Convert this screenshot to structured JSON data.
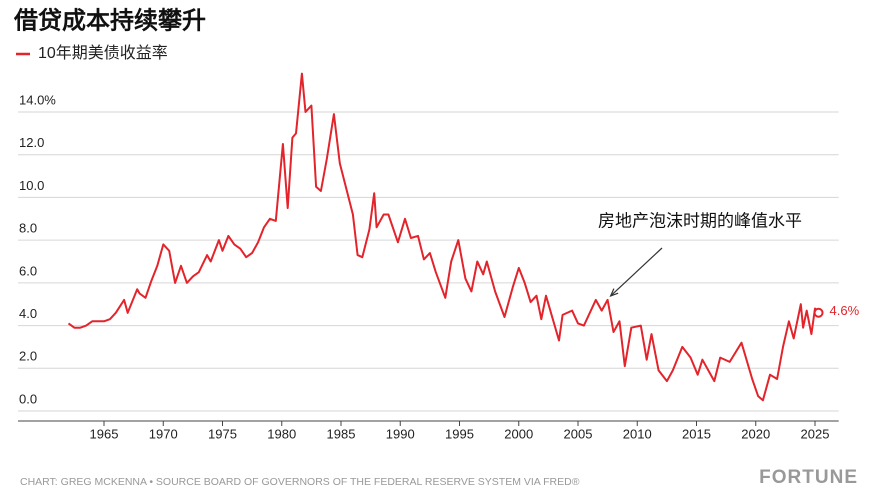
{
  "chart_data": {
    "type": "line",
    "title": "借贷成本持续攀升",
    "source": "CHART: GREG MCKENNA • SOURCE BOARD OF GOVERNORS OF THE FEDERAL RESERVE SYSTEM VIA FRED®",
    "brand": "FORTUNE",
    "annotation": {
      "text": "房地产泡沫时期的峰值水平",
      "x": 2007.5,
      "value": 5.2
    },
    "end_label": "4.6%",
    "xlim": [
      1960,
      2027
    ],
    "xticks": [
      1965,
      1970,
      1975,
      1980,
      1985,
      1990,
      1995,
      2000,
      2005,
      2010,
      2015,
      2020,
      2025
    ],
    "ylim": [
      0,
      14
    ],
    "yticks": [
      {
        "value": 0,
        "label": "0.0"
      },
      {
        "value": 2,
        "label": "2.0"
      },
      {
        "value": 4,
        "label": "4.0"
      },
      {
        "value": 6,
        "label": "6.0"
      },
      {
        "value": 8,
        "label": "8.0"
      },
      {
        "value": 10,
        "label": "10.0"
      },
      {
        "value": 12,
        "label": "12.0"
      },
      {
        "value": 14,
        "label": "14.0%"
      }
    ],
    "grid": true,
    "x": [
      1962.0,
      1962.5,
      1963.0,
      1963.5,
      1964.0,
      1965.0,
      1965.5,
      1966.0,
      1966.7,
      1967.0,
      1967.8,
      1968.0,
      1968.5,
      1969.0,
      1969.5,
      1970.0,
      1970.5,
      1971.0,
      1971.5,
      1972.0,
      1972.5,
      1973.0,
      1973.7,
      1974.0,
      1974.7,
      1975.0,
      1975.5,
      1976.0,
      1976.5,
      1977.0,
      1977.5,
      1978.0,
      1978.5,
      1979.0,
      1979.5,
      1980.1,
      1980.5,
      1980.9,
      1981.2,
      1981.7,
      1982.0,
      1982.5,
      1982.9,
      1983.3,
      1983.8,
      1984.4,
      1984.9,
      1985.5,
      1986.0,
      1986.4,
      1986.8,
      1987.4,
      1987.8,
      1988.0,
      1988.6,
      1989.0,
      1989.8,
      1990.4,
      1990.9,
      1991.5,
      1992.0,
      1992.5,
      1993.0,
      1993.8,
      1994.3,
      1994.9,
      1995.5,
      1996.0,
      1996.5,
      1997.0,
      1997.3,
      1998.0,
      1998.8,
      1999.5,
      2000.0,
      2000.5,
      2001.0,
      2001.5,
      2001.9,
      2002.3,
      2003.4,
      2003.7,
      2004.5,
      2005.0,
      2005.5,
      2006.5,
      2007.0,
      2007.5,
      2008.0,
      2008.5,
      2008.95,
      2009.5,
      2010.3,
      2010.8,
      2011.2,
      2011.8,
      2012.5,
      2013.0,
      2013.8,
      2014.5,
      2015.1,
      2015.5,
      2016.5,
      2017.0,
      2017.8,
      2018.8,
      2019.7,
      2020.2,
      2020.6,
      2021.2,
      2021.8,
      2022.3,
      2022.8,
      2023.2,
      2023.8,
      2024.0,
      2024.3,
      2024.7,
      2025.0,
      2025.3
    ],
    "series": [
      {
        "name": "10年期美债收益率",
        "color": "#e3242b",
        "values": [
          4.1,
          3.9,
          3.9,
          4.0,
          4.2,
          4.2,
          4.3,
          4.6,
          5.2,
          4.6,
          5.7,
          5.5,
          5.3,
          6.1,
          6.8,
          7.8,
          7.5,
          6.0,
          6.8,
          6.0,
          6.3,
          6.5,
          7.3,
          7.0,
          8.0,
          7.5,
          8.2,
          7.8,
          7.6,
          7.2,
          7.4,
          7.9,
          8.6,
          9.0,
          8.9,
          12.5,
          9.5,
          12.8,
          13.0,
          15.8,
          14.0,
          14.3,
          10.5,
          10.3,
          11.8,
          13.9,
          11.6,
          10.3,
          9.2,
          7.3,
          7.2,
          8.5,
          10.2,
          8.6,
          9.2,
          9.2,
          7.9,
          9.0,
          8.1,
          8.2,
          7.1,
          7.4,
          6.5,
          5.3,
          7.0,
          8.0,
          6.2,
          5.6,
          7.0,
          6.4,
          7.0,
          5.6,
          4.4,
          5.8,
          6.7,
          6.0,
          5.1,
          5.4,
          4.3,
          5.4,
          3.3,
          4.5,
          4.7,
          4.1,
          4.0,
          5.2,
          4.7,
          5.2,
          3.7,
          4.2,
          2.1,
          3.9,
          4.0,
          2.4,
          3.6,
          1.9,
          1.4,
          1.9,
          3.0,
          2.5,
          1.7,
          2.4,
          1.4,
          2.5,
          2.3,
          3.2,
          1.5,
          0.7,
          0.5,
          1.7,
          1.5,
          3.0,
          4.2,
          3.4,
          5.0,
          3.9,
          4.7,
          3.6,
          4.8,
          4.6
        ]
      }
    ]
  }
}
